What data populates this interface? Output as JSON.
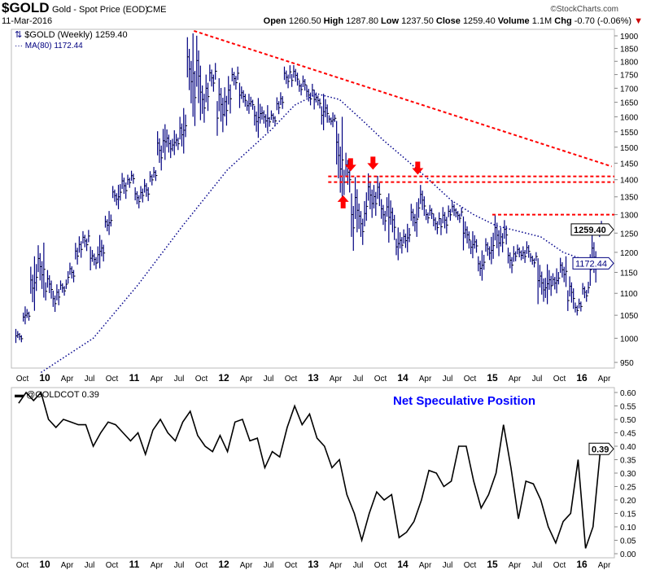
{
  "header": {
    "symbol": "$GOLD",
    "name": "Gold - Spot Price (EOD)",
    "exchange": "CME",
    "date": "11-Mar-2016",
    "brand": "©StockCharts.com",
    "open_label": "Open",
    "open": "1260.50",
    "high_label": "High",
    "high": "1287.80",
    "low_label": "Low",
    "low": "1237.50",
    "close_label": "Close",
    "close": "1259.40",
    "volume_label": "Volume",
    "volume": "1.1M",
    "chg_label": "Chg",
    "chg": "-0.70 (-0.06%)"
  },
  "chart_data": [
    {
      "type": "ohlc",
      "legend": [
        "$GOLD (Weekly) 1259.40",
        "MA(80) 1172.44"
      ],
      "y_scale": "log",
      "ylim": [
        930,
        1960
      ],
      "yticks": [
        950,
        1000,
        1050,
        1100,
        1150,
        1200,
        1250,
        1300,
        1350,
        1400,
        1450,
        1500,
        1550,
        1600,
        1650,
        1700,
        1750,
        1800,
        1850,
        1900
      ],
      "xticks": [
        "Oct",
        "10",
        "Apr",
        "Jul",
        "Oct",
        "11",
        "Apr",
        "Jul",
        "Oct",
        "12",
        "Apr",
        "Jul",
        "Oct",
        "13",
        "Apr",
        "Jul",
        "Oct",
        "14",
        "Apr",
        "Jul",
        "Oct",
        "15",
        "Apr",
        "Jul",
        "Oct",
        "16",
        "Apr"
      ],
      "xlim": [
        "2009-08",
        "2016-05"
      ],
      "grid": false,
      "price_start_month": "2009-09",
      "monthly_high": [
        1020,
        1070,
        1190,
        1225,
        1160,
        1125,
        1135,
        1180,
        1250,
        1265,
        1215,
        1245,
        1310,
        1385,
        1425,
        1430,
        1385,
        1410,
        1445,
        1575,
        1575,
        1555,
        1630,
        1910,
        1920,
        1760,
        1800,
        1760,
        1765,
        1790,
        1720,
        1680,
        1665,
        1640,
        1625,
        1690,
        1790,
        1795,
        1755,
        1725,
        1695,
        1680,
        1615,
        1600,
        1490,
        1420,
        1345,
        1435,
        1425,
        1360,
        1360,
        1265,
        1275,
        1335,
        1390,
        1330,
        1310,
        1330,
        1345,
        1325,
        1295,
        1255,
        1205,
        1240,
        1305,
        1290,
        1220,
        1225,
        1235,
        1205,
        1185,
        1170,
        1160,
        1190,
        1145,
        1090,
        1130,
        1265,
        1288
      ],
      "monthly_low": [
        990,
        1030,
        1060,
        1090,
        1075,
        1050,
        1090,
        1120,
        1165,
        1200,
        1155,
        1160,
        1245,
        1315,
        1330,
        1370,
        1310,
        1330,
        1380,
        1420,
        1460,
        1475,
        1480,
        1600,
        1530,
        1560,
        1675,
        1525,
        1560,
        1690,
        1630,
        1610,
        1530,
        1550,
        1560,
        1600,
        1690,
        1700,
        1670,
        1635,
        1625,
        1555,
        1565,
        1320,
        1340,
        1180,
        1205,
        1275,
        1290,
        1250,
        1225,
        1180,
        1200,
        1240,
        1280,
        1270,
        1240,
        1240,
        1280,
        1275,
        1205,
        1185,
        1130,
        1170,
        1170,
        1190,
        1140,
        1175,
        1170,
        1160,
        1075,
        1075,
        1100,
        1115,
        1050,
        1045,
        1075,
        1110,
        1237
      ],
      "last_close": 1259.4,
      "ma80": {
        "dates": [
          "2009-12",
          "2010-07",
          "2011-01",
          "2011-07",
          "2012-01",
          "2012-07",
          "2012-10",
          "2013-01",
          "2013-04",
          "2013-07",
          "2013-10",
          "2014-01",
          "2014-04",
          "2014-07",
          "2014-10",
          "2015-01",
          "2015-07",
          "2015-10",
          "2016-01",
          "2016-03"
        ],
        "values": [
          930,
          1000,
          1120,
          1270,
          1430,
          1560,
          1640,
          1680,
          1660,
          1590,
          1520,
          1460,
          1400,
          1340,
          1300,
          1270,
          1240,
          1200,
          1180,
          1172.44
        ]
      },
      "price_tag": "1259.40",
      "ma_tag": "1172.44",
      "trendline": {
        "from": [
          "2011-09",
          1920
        ],
        "to": [
          "2016-05",
          1440
        ]
      },
      "resistance_lines": [
        {
          "from": "2013-03",
          "value": 1410
        },
        {
          "from": "2013-03",
          "value": 1393
        },
        {
          "from": "2015-01",
          "value": 1300
        }
      ],
      "arrows": [
        {
          "date": "2013-05",
          "price": 1345,
          "dir": "up"
        },
        {
          "date": "2013-06",
          "price": 1435,
          "dir": "down"
        },
        {
          "date": "2013-09",
          "price": 1440,
          "dir": "down"
        },
        {
          "date": "2014-03",
          "price": 1425,
          "dir": "down"
        }
      ],
      "colors": {
        "bars": "#000080",
        "ma": "#00008b",
        "annotation": "#ff0000"
      }
    },
    {
      "type": "line",
      "legend": "@GOLDCOT 0.39",
      "annotation": "Net Speculative Position",
      "ylim": [
        -0.01,
        0.62
      ],
      "yticks": [
        "0.00",
        "0.05",
        "0.10",
        "0.15",
        "0.20",
        "0.25",
        "0.30",
        "0.35",
        "0.40",
        "0.45",
        "0.50",
        "0.55",
        "0.60"
      ],
      "start_month": "2009-09",
      "values": [
        0.56,
        0.6,
        0.57,
        0.6,
        0.5,
        0.47,
        0.5,
        0.49,
        0.48,
        0.48,
        0.4,
        0.45,
        0.49,
        0.48,
        0.45,
        0.42,
        0.45,
        0.37,
        0.46,
        0.5,
        0.45,
        0.42,
        0.49,
        0.53,
        0.44,
        0.4,
        0.38,
        0.44,
        0.38,
        0.49,
        0.5,
        0.42,
        0.43,
        0.32,
        0.38,
        0.36,
        0.47,
        0.55,
        0.48,
        0.52,
        0.43,
        0.4,
        0.32,
        0.35,
        0.22,
        0.15,
        0.05,
        0.15,
        0.23,
        0.2,
        0.22,
        0.06,
        0.08,
        0.12,
        0.2,
        0.31,
        0.3,
        0.25,
        0.27,
        0.4,
        0.4,
        0.27,
        0.17,
        0.22,
        0.3,
        0.48,
        0.32,
        0.13,
        0.27,
        0.26,
        0.2,
        0.1,
        0.04,
        0.12,
        0.15,
        0.35,
        0.02,
        0.1,
        0.39
      ],
      "tag": "0.39",
      "colors": {
        "line": "#000000",
        "annotation": "#0000ff"
      }
    }
  ]
}
